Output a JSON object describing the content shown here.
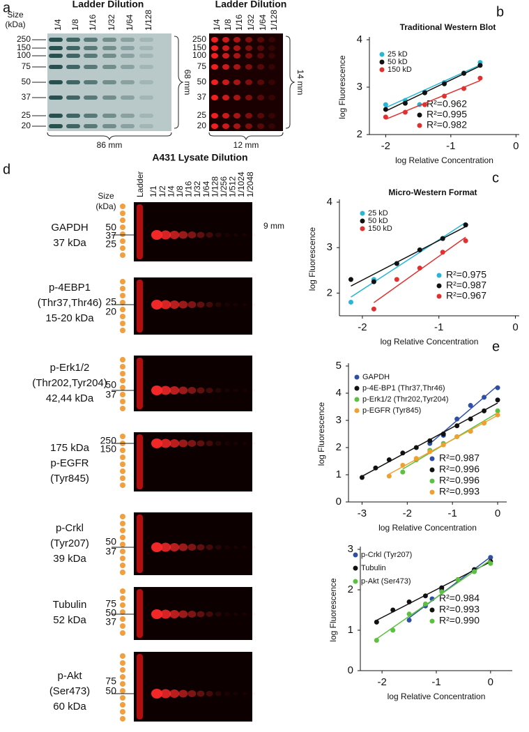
{
  "panel_labels": [
    "a",
    "b",
    "c",
    "d",
    "e"
  ],
  "panel_a": {
    "left": {
      "title": "Ladder Dilution",
      "size_label": "Size (kDa)",
      "lanes": [
        "1/4",
        "1/8",
        "1/16",
        "1/32",
        "1/64",
        "1/128"
      ],
      "sizes": [
        250,
        150,
        100,
        75,
        50,
        37,
        25,
        20
      ],
      "height_label": "68 mm",
      "width_label": "86 mm"
    },
    "right": {
      "title": "Ladder Dilution",
      "lanes": [
        "1/4",
        "1/8",
        "1/16",
        "1/32",
        "1/64",
        "1/128"
      ],
      "sizes": [
        250,
        150,
        100,
        75,
        50,
        37,
        25,
        20
      ],
      "height_label": "14 mm",
      "width_label": "12 mm"
    }
  },
  "panel_d": {
    "title": "A431 Lysate Dilution",
    "size_label": "Size (kDa)",
    "height_label": "9 mm",
    "lanes": [
      "Ladder",
      "1/1",
      "1/2",
      "1/4",
      "1/8",
      "1/16",
      "1/32",
      "1/64",
      "1/128",
      "1/256",
      "1/512",
      "1/1024",
      "1/2048"
    ],
    "rows": [
      {
        "label": [
          "GAPDH",
          "37 kDa"
        ],
        "markers": [
          50,
          37,
          25
        ]
      },
      {
        "label": [
          "p-4EBP1",
          "(Thr37,Thr46)",
          "15-20 kDa"
        ],
        "markers": [
          25,
          20
        ]
      },
      {
        "label": [
          "p-Erk1/2",
          "(Thr202,Tyr204)",
          "42,44 kDa"
        ],
        "markers": [
          50,
          37
        ]
      },
      {
        "label": [
          "175 kDa",
          "p-EGFR",
          "(Tyr845)"
        ],
        "markers": [
          250,
          150
        ]
      },
      {
        "label": [
          "p-Crkl",
          "(Tyr207)",
          "39 kDa"
        ],
        "markers": [
          50,
          37
        ]
      },
      {
        "label": [
          "Tubulin",
          "52 kDa"
        ],
        "markers": [
          75,
          50,
          37
        ]
      },
      {
        "label": [
          "p-Akt",
          "(Ser473)",
          "60 kDa"
        ],
        "markers": [
          75,
          50
        ]
      }
    ]
  },
  "chart_data": [
    {
      "type": "scatter",
      "title": "Traditional Western Blot",
      "x_label": "log Relative Concentration",
      "y_label": "log Fluorescence",
      "x": [
        -2,
        -1.7,
        -1.4,
        -1.1,
        -0.8,
        -0.55
      ],
      "series": [
        {
          "name": "25 kD",
          "color": "#29b6d6",
          "values": [
            2.63,
            2.72,
            2.9,
            3.1,
            3.3,
            3.52
          ],
          "r2": "R²=0.962"
        },
        {
          "name": "50 kD",
          "color": "#111111",
          "values": [
            2.53,
            2.66,
            2.88,
            3.07,
            3.29,
            3.46
          ],
          "r2": "R²=0.995"
        },
        {
          "name": "150 kD",
          "color": "#e03030",
          "values": [
            2.37,
            2.47,
            2.63,
            2.81,
            2.97,
            3.19
          ],
          "r2": "R²=0.982"
        }
      ],
      "xlim": [
        -2.25,
        0.05
      ],
      "ylim": [
        2,
        4
      ],
      "xticks": [
        -2,
        -1,
        0
      ],
      "yticks": [
        2,
        3,
        4
      ]
    },
    {
      "type": "scatter",
      "title": "Micro-Western Format",
      "x_label": "log Relative Concentration",
      "y_label": "log Fluorescence",
      "x": [
        -2.15,
        -1.85,
        -1.55,
        -1.25,
        -0.95,
        -0.65
      ],
      "series": [
        {
          "name": "25 kD",
          "color": "#29b6d6",
          "values": [
            1.8,
            2.3,
            2.65,
            2.95,
            3.2,
            3.5
          ],
          "r2": "R²=0.975"
        },
        {
          "name": "50 kD",
          "color": "#111111",
          "values": [
            2.3,
            2.25,
            2.65,
            2.95,
            3.2,
            3.5
          ],
          "r2": "R²=0.987"
        },
        {
          "name": "150 kD",
          "color": "#e03030",
          "values": [
            null,
            1.65,
            2.3,
            2.55,
            2.9,
            3.15
          ],
          "r2": "R²=0.967"
        }
      ],
      "xlim": [
        -2.3,
        0.05
      ],
      "ylim": [
        1.5,
        4
      ],
      "xticks": [
        -2,
        -1,
        0
      ],
      "yticks": [
        2,
        3,
        4
      ]
    },
    {
      "type": "scatter",
      "x_label": "log Relative Concentration",
      "y_label": "log Fluorescence",
      "x": [
        -3,
        -2.7,
        -2.4,
        -2.1,
        -1.8,
        -1.5,
        -1.2,
        -0.9,
        -0.6,
        -0.3,
        0
      ],
      "series": [
        {
          "name": "GAPDH",
          "color": "#2e4fa3",
          "values": [
            null,
            null,
            null,
            null,
            null,
            2.15,
            2.45,
            3.05,
            3.55,
            3.85,
            4.2
          ],
          "r2": "R²=0.987"
        },
        {
          "name": "p-4E-BP1 (Thr37,Thr46)",
          "color": "#111111",
          "values": [
            0.9,
            1.25,
            1.55,
            1.8,
            2.0,
            2.25,
            2.5,
            2.8,
            3.05,
            3.35,
            3.75
          ],
          "r2": "R²=0.996"
        },
        {
          "name": "p-Erk1/2 (Thr202,Tyr204)",
          "color": "#5cc040",
          "values": [
            null,
            null,
            null,
            1.1,
            1.55,
            1.9,
            2.15,
            2.4,
            2.6,
            2.9,
            3.35
          ],
          "r2": "R²=0.996"
        },
        {
          "name": "p-EGFR (Tyr845)",
          "color": "#f0a030",
          "values": [
            null,
            null,
            0.95,
            1.35,
            1.6,
            1.85,
            2.1,
            2.4,
            2.6,
            2.9,
            3.2
          ],
          "r2": "R²=0.993"
        }
      ],
      "xlim": [
        -3.3,
        0.2
      ],
      "ylim": [
        0,
        5
      ],
      "xticks": [
        -3,
        -2,
        -1,
        0
      ],
      "yticks": [
        0,
        1,
        2,
        3,
        4,
        5
      ]
    },
    {
      "type": "scatter",
      "x_label": "log Relative Concentration",
      "y_label": "log Fluorescence",
      "x": [
        -2.1,
        -1.8,
        -1.5,
        -1.2,
        -0.9,
        -0.6,
        -0.3,
        0
      ],
      "series": [
        {
          "name": "p-Crkl (Tyr207)",
          "color": "#2e4fa3",
          "values": [
            null,
            null,
            1.25,
            1.6,
            2.0,
            2.25,
            2.45,
            2.8
          ],
          "r2": "R²=0.984"
        },
        {
          "name": "Tubulin",
          "color": "#111111",
          "values": [
            1.2,
            1.5,
            1.7,
            1.85,
            2.05,
            2.25,
            2.5,
            2.7
          ],
          "r2": "R²=0.993"
        },
        {
          "name": "p-Akt (Ser473)",
          "color": "#5cc040",
          "values": [
            0.75,
            1.0,
            1.4,
            1.65,
            1.95,
            2.25,
            2.45,
            2.65
          ],
          "r2": "R²=0.990"
        }
      ],
      "xlim": [
        -2.4,
        0.4
      ],
      "ylim": [
        0,
        3
      ],
      "xticks": [
        -2,
        -1,
        0
      ],
      "yticks": [
        0,
        1,
        2,
        3
      ]
    }
  ]
}
